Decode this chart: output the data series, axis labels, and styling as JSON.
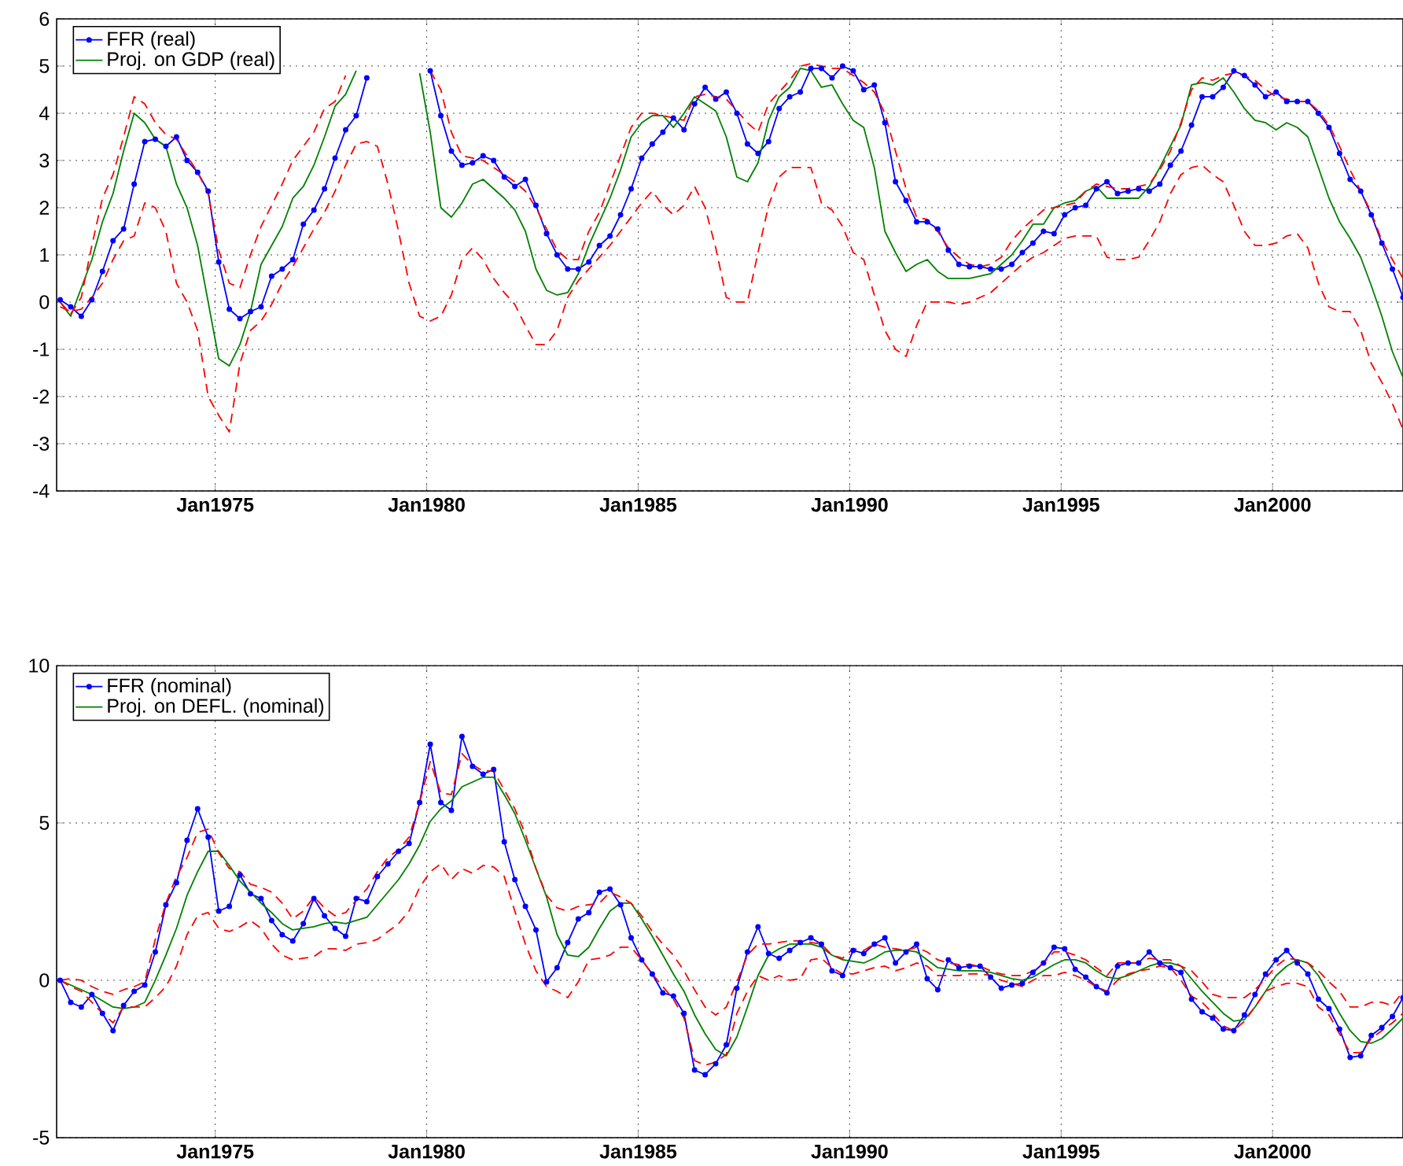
{
  "chart_data": [
    {
      "type": "line",
      "grid": true,
      "legend": "top left",
      "x": [
        "1971-05",
        "1971-08",
        "1971-11",
        "1972-02",
        "1972-05",
        "1972-08",
        "1972-11",
        "1973-02",
        "1973-05",
        "1973-08",
        "1973-11",
        "1974-02",
        "1974-05",
        "1974-08",
        "1974-11",
        "1975-02",
        "1975-05",
        "1975-08",
        "1975-11",
        "1976-02",
        "1976-05",
        "1976-08",
        "1976-11",
        "1977-02",
        "1977-05",
        "1977-08",
        "1977-11",
        "1978-02",
        "1978-05",
        "1978-08",
        "1978-11",
        "1979-02",
        "1979-05",
        "1979-08",
        "1979-11",
        "1980-02",
        "1980-05",
        "1980-08",
        "1980-11",
        "1981-02",
        "1981-05",
        "1981-08",
        "1981-11",
        "1982-02",
        "1982-05",
        "1982-08",
        "1982-11",
        "1983-02",
        "1983-05",
        "1983-08",
        "1983-11",
        "1984-02",
        "1984-05",
        "1984-08",
        "1984-11",
        "1985-02",
        "1985-05",
        "1985-08",
        "1985-11",
        "1986-02",
        "1986-05",
        "1986-08",
        "1986-11",
        "1987-02",
        "1987-05",
        "1987-08",
        "1987-11",
        "1988-02",
        "1988-05",
        "1988-08",
        "1988-11",
        "1989-02",
        "1989-05",
        "1989-08",
        "1989-11",
        "1990-02",
        "1990-05",
        "1990-08",
        "1990-11",
        "1991-02",
        "1991-05",
        "1991-08",
        "1991-11",
        "1992-02",
        "1992-05",
        "1992-08",
        "1992-11",
        "1993-02",
        "1993-05",
        "1993-08",
        "1993-11",
        "1994-02",
        "1994-05",
        "1994-08",
        "1994-11",
        "1995-02",
        "1995-05",
        "1995-08",
        "1995-11",
        "1996-02",
        "1996-05",
        "1996-08",
        "1996-11",
        "1997-02",
        "1997-05",
        "1997-08",
        "1997-11",
        "1998-02",
        "1998-05",
        "1998-08",
        "1998-11",
        "1999-02",
        "1999-05",
        "1999-08",
        "1999-11",
        "2000-02",
        "2000-05",
        "2000-08",
        "2000-11",
        "2001-02",
        "2001-05",
        "2001-08",
        "2001-11",
        "2002-02",
        "2002-05",
        "2002-08",
        "2002-11",
        "2003-02"
      ],
      "xlim": [
        "1971-04",
        "2003-02"
      ],
      "xticks": [
        {
          "value": "1975-01",
          "label": "Jan1975"
        },
        {
          "value": "1980-01",
          "label": "Jan1980"
        },
        {
          "value": "1985-01",
          "label": "Jan1985"
        },
        {
          "value": "1990-01",
          "label": "Jan1990"
        },
        {
          "value": "1995-01",
          "label": "Jan1995"
        },
        {
          "value": "2000-01",
          "label": "Jan2000"
        }
      ],
      "ylim": [
        -4,
        6
      ],
      "yticks": [
        -4,
        -3,
        -2,
        -1,
        0,
        1,
        2,
        3,
        4,
        5,
        6
      ],
      "series": [
        {
          "name": "FFR (real)",
          "color": "#0000ff",
          "marker": "circle",
          "line_style": "solid",
          "values": [
            0.05,
            -0.1,
            -0.3,
            0.05,
            0.65,
            1.3,
            1.55,
            2.5,
            3.4,
            3.45,
            3.3,
            3.5,
            3.0,
            2.75,
            2.35,
            0.85,
            -0.15,
            -0.35,
            -0.2,
            -0.1,
            0.55,
            0.7,
            0.9,
            1.65,
            1.95,
            2.4,
            3.05,
            3.65,
            3.95,
            4.75,
            null,
            null,
            null,
            null,
            null,
            4.9,
            3.95,
            3.2,
            2.9,
            2.95,
            3.1,
            3.0,
            2.65,
            2.45,
            2.6,
            2.05,
            1.45,
            1.0,
            0.7,
            0.7,
            0.85,
            1.2,
            1.4,
            1.85,
            2.4,
            3.05,
            3.35,
            3.6,
            3.9,
            3.65,
            4.2,
            4.55,
            4.3,
            4.45,
            4.0,
            3.35,
            3.15,
            3.4,
            4.1,
            4.35,
            4.45,
            4.95,
            4.95,
            4.75,
            5.0,
            4.9,
            4.5,
            4.6,
            3.8,
            2.55,
            2.15,
            1.7,
            1.7,
            1.55,
            1.1,
            0.8,
            0.75,
            0.75,
            0.7,
            0.7,
            0.8,
            1.05,
            1.25,
            1.5,
            1.45,
            1.85,
            2.0,
            2.05,
            2.4,
            2.55,
            2.3,
            2.35,
            2.4,
            2.35,
            2.5,
            2.9,
            3.2,
            3.75,
            4.35,
            4.35,
            4.55,
            4.9,
            4.8,
            4.6,
            4.35,
            4.45,
            4.25,
            4.25,
            4.25,
            4.0,
            3.7,
            3.15,
            2.6,
            2.35,
            1.85,
            1.25,
            0.7,
            0.1
          ]
        },
        {
          "name": "Proj. on GDP (real)",
          "color": "#008000",
          "marker": "none",
          "line_style": "solid",
          "values": [
            0.0,
            -0.3,
            0.3,
            0.9,
            1.7,
            2.3,
            3.2,
            4.0,
            3.8,
            3.45,
            3.3,
            2.5,
            2.0,
            1.2,
            0.0,
            -1.2,
            -1.35,
            -0.9,
            -0.2,
            0.8,
            1.2,
            1.6,
            2.2,
            2.45,
            2.9,
            3.5,
            4.15,
            4.4,
            4.9,
            null,
            null,
            null,
            null,
            null,
            4.85,
            3.6,
            2.0,
            1.8,
            2.1,
            2.5,
            2.6,
            2.4,
            2.2,
            1.95,
            1.5,
            0.7,
            0.25,
            0.15,
            0.2,
            0.6,
            1.2,
            1.7,
            2.2,
            2.8,
            3.5,
            3.8,
            3.95,
            3.95,
            3.7,
            4.0,
            4.35,
            4.2,
            4.05,
            3.5,
            2.65,
            2.55,
            2.95,
            3.85,
            4.35,
            4.55,
            4.95,
            4.9,
            4.55,
            4.6,
            4.2,
            3.85,
            3.7,
            2.85,
            1.5,
            1.05,
            0.65,
            0.8,
            0.9,
            0.65,
            0.5,
            0.5,
            0.5,
            0.55,
            0.6,
            0.8,
            1.0,
            1.3,
            1.65,
            1.65,
            2.0,
            2.1,
            2.15,
            2.35,
            2.45,
            2.2,
            2.2,
            2.2,
            2.2,
            2.45,
            2.85,
            3.3,
            3.75,
            4.6,
            4.65,
            4.6,
            4.75,
            4.45,
            4.1,
            3.85,
            3.8,
            3.65,
            3.8,
            3.7,
            3.5,
            2.85,
            2.2,
            1.7,
            1.35,
            0.95,
            0.35,
            -0.3,
            -1.05,
            -1.6
          ]
        },
        {
          "color": "#ff0000",
          "marker": "none",
          "line_style": "dashed",
          "values": [
            0.0,
            -0.25,
            0.1,
            1.2,
            2.2,
            2.7,
            3.5,
            4.35,
            4.2,
            3.8,
            3.55,
            3.45,
            3.1,
            2.75,
            2.3,
            1.1,
            0.4,
            0.3,
            1.0,
            1.6,
            2.05,
            2.5,
            3.0,
            3.3,
            3.6,
            4.1,
            4.25,
            4.8,
            null,
            null,
            null,
            null,
            null,
            null,
            null,
            4.9,
            4.5,
            3.6,
            3.1,
            3.05,
            3.0,
            2.85,
            2.7,
            2.55,
            2.35,
            2.0,
            1.55,
            1.1,
            0.9,
            0.9,
            1.5,
            1.9,
            2.5,
            3.1,
            3.7,
            4.0,
            4.0,
            3.95,
            3.9,
            3.85,
            4.35,
            4.4,
            4.35,
            4.3,
            4.05,
            3.8,
            3.6,
            4.2,
            4.45,
            4.7,
            5.0,
            5.05,
            5.0,
            4.95,
            4.95,
            4.8,
            4.65,
            4.45,
            4.0,
            3.2,
            2.4,
            1.8,
            1.75,
            1.5,
            1.15,
            0.95,
            0.8,
            0.75,
            0.8,
            0.95,
            1.3,
            1.55,
            1.75,
            1.95,
            2.0,
            2.05,
            2.1,
            2.35,
            2.5,
            2.45,
            2.4,
            2.4,
            2.45,
            2.5,
            2.8,
            3.2,
            3.8,
            4.5,
            4.75,
            4.7,
            4.8,
            4.85,
            4.8,
            4.7,
            4.5,
            4.35,
            4.3,
            4.25,
            4.25,
            4.05,
            3.75,
            3.3,
            2.8,
            2.35,
            1.9,
            1.3,
            0.9,
            0.5
          ]
        },
        {
          "color": "#ff0000",
          "marker": "none",
          "line_style": "dashed",
          "values": [
            -0.1,
            -0.2,
            -0.15,
            0.1,
            0.4,
            0.9,
            1.3,
            1.4,
            2.1,
            2.0,
            1.5,
            0.4,
            0.0,
            -0.6,
            -2.0,
            -2.4,
            -2.75,
            -1.3,
            -0.6,
            -0.4,
            -0.05,
            0.4,
            0.75,
            1.15,
            1.55,
            1.9,
            2.35,
            2.9,
            3.35,
            3.4,
            3.3,
            2.5,
            1.5,
            0.4,
            -0.3,
            -0.4,
            -0.3,
            0.15,
            0.9,
            1.15,
            0.9,
            0.5,
            0.2,
            -0.05,
            -0.5,
            -0.9,
            -0.9,
            -0.6,
            0.1,
            0.45,
            0.7,
            0.95,
            1.2,
            1.5,
            1.8,
            2.1,
            2.35,
            2.05,
            1.85,
            2.05,
            2.45,
            2.0,
            1.15,
            0.1,
            0.0,
            0.0,
            1.05,
            2.05,
            2.65,
            2.85,
            2.85,
            2.85,
            2.1,
            1.95,
            1.6,
            1.05,
            0.9,
            0.15,
            -0.6,
            -1.0,
            -1.15,
            -0.5,
            0.0,
            0.0,
            0.0,
            -0.05,
            0.0,
            0.1,
            0.2,
            0.4,
            0.6,
            0.8,
            0.95,
            1.05,
            1.2,
            1.35,
            1.4,
            1.4,
            1.4,
            0.95,
            0.9,
            0.9,
            0.95,
            1.3,
            1.7,
            2.3,
            2.7,
            2.85,
            2.9,
            2.7,
            2.55,
            2.05,
            1.5,
            1.2,
            1.2,
            1.25,
            1.4,
            1.45,
            1.15,
            0.4,
            -0.1,
            -0.2,
            -0.2,
            -0.6,
            -1.3,
            -1.7,
            -2.15,
            -2.7
          ]
        }
      ]
    },
    {
      "type": "line",
      "grid": true,
      "legend": "top left",
      "x": [
        "1971-05",
        "1971-08",
        "1971-11",
        "1972-02",
        "1972-05",
        "1972-08",
        "1972-11",
        "1973-02",
        "1973-05",
        "1973-08",
        "1973-11",
        "1974-02",
        "1974-05",
        "1974-08",
        "1974-11",
        "1975-02",
        "1975-05",
        "1975-08",
        "1975-11",
        "1976-02",
        "1976-05",
        "1976-08",
        "1976-11",
        "1977-02",
        "1977-05",
        "1977-08",
        "1977-11",
        "1978-02",
        "1978-05",
        "1978-08",
        "1978-11",
        "1979-02",
        "1979-05",
        "1979-08",
        "1979-11",
        "1980-02",
        "1980-05",
        "1980-08",
        "1980-11",
        "1981-02",
        "1981-05",
        "1981-08",
        "1981-11",
        "1982-02",
        "1982-05",
        "1982-08",
        "1982-11",
        "1983-02",
        "1983-05",
        "1983-08",
        "1983-11",
        "1984-02",
        "1984-05",
        "1984-08",
        "1984-11",
        "1985-02",
        "1985-05",
        "1985-08",
        "1985-11",
        "1986-02",
        "1986-05",
        "1986-08",
        "1986-11",
        "1987-02",
        "1987-05",
        "1987-08",
        "1987-11",
        "1988-02",
        "1988-05",
        "1988-08",
        "1988-11",
        "1989-02",
        "1989-05",
        "1989-08",
        "1989-11",
        "1990-02",
        "1990-05",
        "1990-08",
        "1990-11",
        "1991-02",
        "1991-05",
        "1991-08",
        "1991-11",
        "1992-02",
        "1992-05",
        "1992-08",
        "1992-11",
        "1993-02",
        "1993-05",
        "1993-08",
        "1993-11",
        "1994-02",
        "1994-05",
        "1994-08",
        "1994-11",
        "1995-02",
        "1995-05",
        "1995-08",
        "1995-11",
        "1996-02",
        "1996-05",
        "1996-08",
        "1996-11",
        "1997-02",
        "1997-05",
        "1997-08",
        "1997-11",
        "1998-02",
        "1998-05",
        "1998-08",
        "1998-11",
        "1999-02",
        "1999-05",
        "1999-08",
        "1999-11",
        "2000-02",
        "2000-05",
        "2000-08",
        "2000-11",
        "2001-02",
        "2001-05",
        "2001-08",
        "2001-11",
        "2002-02",
        "2002-05",
        "2002-08",
        "2002-11",
        "2003-02"
      ],
      "xlim": [
        "1971-04",
        "2003-02"
      ],
      "xticks": [
        {
          "value": "1975-01",
          "label": "Jan1975"
        },
        {
          "value": "1980-01",
          "label": "Jan1980"
        },
        {
          "value": "1985-01",
          "label": "Jan1985"
        },
        {
          "value": "1990-01",
          "label": "Jan1990"
        },
        {
          "value": "1995-01",
          "label": "Jan1995"
        },
        {
          "value": "2000-01",
          "label": "Jan2000"
        }
      ],
      "ylim": [
        -5,
        10
      ],
      "yticks": [
        -5,
        0,
        5,
        10
      ],
      "series": [
        {
          "name": "FFR (nominal)",
          "color": "#0000ff",
          "marker": "circle",
          "line_style": "solid",
          "values": [
            0.0,
            -0.7,
            -0.85,
            -0.45,
            -1.05,
            -1.6,
            -0.8,
            -0.35,
            -0.15,
            0.9,
            2.4,
            3.1,
            4.45,
            5.45,
            4.55,
            2.2,
            2.35,
            3.35,
            2.75,
            2.6,
            1.9,
            1.45,
            1.25,
            1.8,
            2.6,
            2.05,
            1.65,
            1.4,
            2.6,
            2.5,
            3.3,
            3.7,
            4.1,
            4.35,
            5.65,
            7.5,
            5.65,
            5.4,
            7.75,
            6.8,
            6.55,
            6.7,
            4.4,
            3.2,
            2.35,
            1.6,
            -0.05,
            0.4,
            1.2,
            1.95,
            2.15,
            2.8,
            2.9,
            2.4,
            1.35,
            0.65,
            0.2,
            -0.4,
            -0.5,
            -1.05,
            -2.85,
            -3.0,
            -2.65,
            -2.05,
            -0.25,
            0.9,
            1.7,
            0.85,
            0.7,
            0.95,
            1.2,
            1.35,
            1.15,
            0.3,
            0.15,
            0.95,
            0.85,
            1.15,
            1.35,
            0.55,
            0.9,
            1.15,
            0.05,
            -0.3,
            0.65,
            0.4,
            0.45,
            0.45,
            0.1,
            -0.25,
            -0.15,
            -0.1,
            0.25,
            0.55,
            1.05,
            1.0,
            0.35,
            0.1,
            -0.2,
            -0.4,
            0.45,
            0.55,
            0.55,
            0.9,
            0.55,
            0.4,
            0.25,
            -0.6,
            -1.0,
            -1.2,
            -1.55,
            -1.6,
            -1.1,
            -0.45,
            0.2,
            0.65,
            0.95,
            0.55,
            0.2,
            -0.6,
            -0.9,
            -1.55,
            -2.45,
            -2.4,
            -1.75,
            -1.5,
            -1.15,
            -0.55
          ]
        },
        {
          "name": "Proj. on DEFL. (nominal)",
          "color": "#008000",
          "marker": "none",
          "line_style": "solid",
          "values": [
            0.0,
            -0.15,
            -0.3,
            -0.45,
            -0.65,
            -0.85,
            -0.9,
            -0.85,
            -0.7,
            0.0,
            0.8,
            1.65,
            2.7,
            3.45,
            4.1,
            4.1,
            3.65,
            3.15,
            2.8,
            2.45,
            2.15,
            1.8,
            1.6,
            1.65,
            1.7,
            1.8,
            1.85,
            1.8,
            1.9,
            2.0,
            2.4,
            2.8,
            3.2,
            3.7,
            4.3,
            5.05,
            5.45,
            5.7,
            6.15,
            6.3,
            6.45,
            6.45,
            5.9,
            5.3,
            4.45,
            3.55,
            2.65,
            1.45,
            0.8,
            0.75,
            1.05,
            1.65,
            2.2,
            2.45,
            2.45,
            1.95,
            1.4,
            0.8,
            0.2,
            -0.35,
            -1.1,
            -1.7,
            -2.2,
            -2.4,
            -1.8,
            -0.85,
            0.15,
            0.8,
            1.0,
            1.15,
            1.15,
            1.15,
            1.05,
            0.8,
            0.65,
            0.6,
            0.55,
            0.7,
            0.9,
            0.95,
            0.95,
            0.9,
            0.65,
            0.4,
            0.35,
            0.3,
            0.3,
            0.3,
            0.25,
            0.15,
            0.05,
            0.0,
            0.1,
            0.3,
            0.5,
            0.65,
            0.65,
            0.55,
            0.3,
            0.1,
            0.05,
            0.15,
            0.3,
            0.45,
            0.55,
            0.55,
            0.45,
            0.05,
            -0.35,
            -0.7,
            -1.05,
            -1.3,
            -1.25,
            -0.85,
            -0.35,
            0.15,
            0.45,
            0.65,
            0.55,
            0.15,
            -0.45,
            -1.05,
            -1.6,
            -1.95,
            -2.0,
            -1.85,
            -1.55,
            -1.2
          ]
        },
        {
          "color": "#ff0000",
          "marker": "none",
          "line_style": "dashed",
          "values": [
            0.0,
            0.05,
            0.0,
            -0.2,
            -0.35,
            -0.45,
            -0.3,
            -0.2,
            -0.05,
            1.3,
            2.45,
            3.3,
            3.9,
            4.7,
            4.8,
            4.05,
            3.55,
            3.45,
            3.05,
            2.95,
            2.8,
            2.45,
            1.95,
            2.2,
            2.65,
            2.3,
            2.05,
            2.15,
            2.55,
            2.9,
            3.45,
            3.9,
            4.15,
            4.55,
            5.65,
            6.95,
            5.95,
            5.9,
            7.2,
            6.85,
            6.65,
            6.65,
            6.05,
            5.45,
            4.65,
            3.55,
            2.7,
            2.3,
            2.2,
            2.35,
            2.4,
            2.45,
            2.8,
            2.65,
            2.45,
            2.05,
            1.55,
            1.15,
            0.8,
            0.3,
            -0.3,
            -0.85,
            -1.1,
            -0.85,
            -0.05,
            0.8,
            1.15,
            1.15,
            1.2,
            1.25,
            1.25,
            1.2,
            1.15,
            0.8,
            0.7,
            1.0,
            0.95,
            1.15,
            1.05,
            1.0,
            0.95,
            1.05,
            0.9,
            0.65,
            0.55,
            0.5,
            0.5,
            0.45,
            0.3,
            0.2,
            0.15,
            0.15,
            0.3,
            0.55,
            0.9,
            0.9,
            0.8,
            0.65,
            0.4,
            0.15,
            0.55,
            0.55,
            0.55,
            0.7,
            0.65,
            0.65,
            0.45,
            0.3,
            -0.05,
            -0.45,
            -0.55,
            -0.55,
            -0.55,
            -0.3,
            0.05,
            0.45,
            0.7,
            0.65,
            0.55,
            0.3,
            -0.05,
            -0.35,
            -0.85,
            -0.85,
            -0.7,
            -0.7,
            -0.8,
            -0.35
          ]
        },
        {
          "color": "#ff0000",
          "marker": "none",
          "line_style": "dashed",
          "values": [
            0.0,
            -0.2,
            -0.35,
            -0.7,
            -1.05,
            -1.35,
            -0.85,
            -0.85,
            -0.85,
            -0.55,
            -0.2,
            0.45,
            1.45,
            2.05,
            2.15,
            1.65,
            1.55,
            1.7,
            1.9,
            1.65,
            1.15,
            0.8,
            0.65,
            0.7,
            0.75,
            1.0,
            1.0,
            0.95,
            1.15,
            1.2,
            1.3,
            1.55,
            1.8,
            2.2,
            2.95,
            3.45,
            3.7,
            3.2,
            3.55,
            3.4,
            3.65,
            3.6,
            3.3,
            2.2,
            1.15,
            0.3,
            -0.2,
            -0.35,
            -0.55,
            -0.05,
            0.65,
            0.7,
            0.8,
            1.05,
            1.05,
            0.65,
            0.2,
            -0.2,
            -0.6,
            -1.2,
            -2.55,
            -2.7,
            -2.6,
            -2.35,
            -1.05,
            -0.35,
            0.15,
            0.0,
            0.15,
            0.0,
            0.05,
            0.65,
            0.7,
            0.4,
            0.2,
            0.2,
            0.3,
            0.4,
            0.45,
            0.3,
            0.4,
            0.55,
            0.45,
            0.15,
            0.15,
            0.15,
            0.2,
            0.2,
            0.15,
            0.0,
            -0.1,
            -0.2,
            0.0,
            0.15,
            0.15,
            0.25,
            0.15,
            0.0,
            -0.2,
            -0.35,
            0.0,
            0.2,
            0.3,
            0.35,
            0.45,
            0.4,
            0.0,
            -0.5,
            -0.7,
            -1.05,
            -1.45,
            -1.6,
            -1.3,
            -0.85,
            -0.35,
            -0.2,
            -0.1,
            -0.1,
            -0.2,
            -0.85,
            -1.1,
            -1.7,
            -2.3,
            -2.3,
            -1.85,
            -1.6,
            -1.35,
            -1.05
          ]
        }
      ]
    }
  ]
}
